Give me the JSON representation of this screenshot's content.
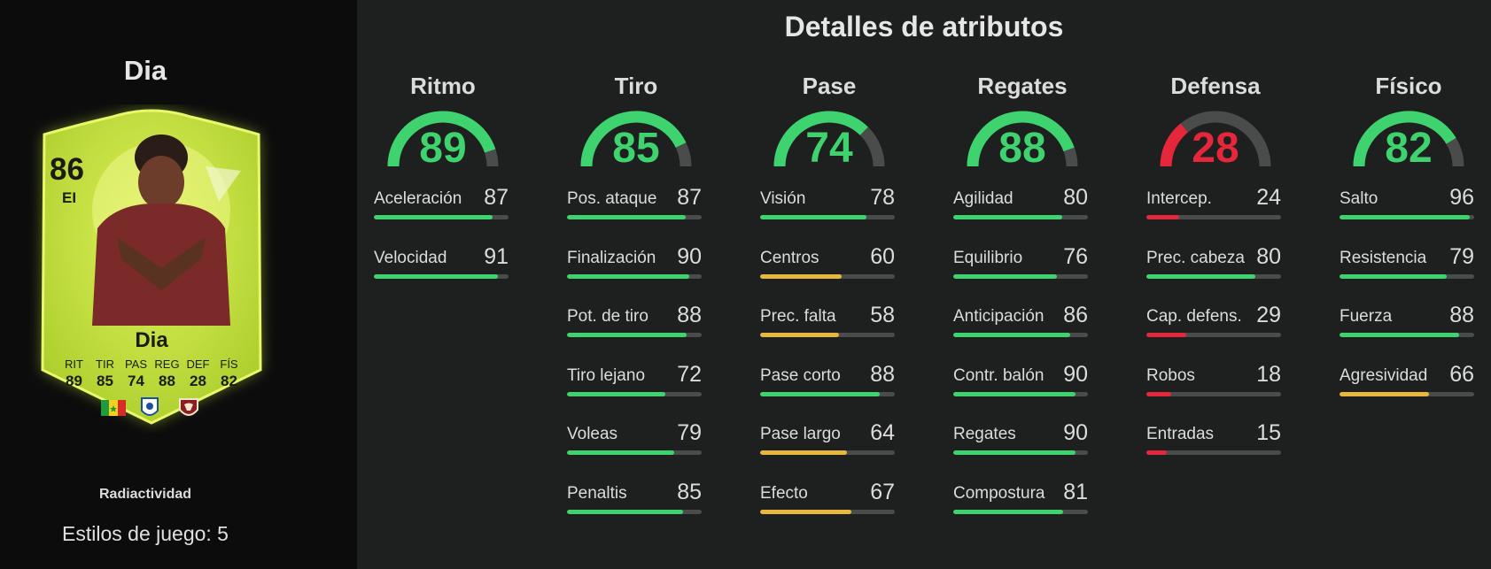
{
  "player": {
    "name": "Dia",
    "rating": "86",
    "position": "EI",
    "card_name": "Dia",
    "card_version": "Radiactividad",
    "playstyles": "Estilos de juego: 5",
    "card_stat_labels": [
      "RIT",
      "TIR",
      "PAS",
      "REG",
      "DEF",
      "FÍS"
    ],
    "card_stat_values": [
      "89",
      "85",
      "74",
      "88",
      "28",
      "82"
    ]
  },
  "section_title": "Detalles de atributos",
  "colors": {
    "high": "#3ed36e",
    "mid": "#e8b83c",
    "low": "#e5263b",
    "track": "#4a4b4b",
    "card": "#c8e83a"
  },
  "categories": [
    {
      "name": "Ritmo",
      "value": 89,
      "attributes": [
        {
          "name": "Aceleración",
          "value": 87
        },
        {
          "name": "Velocidad",
          "value": 91
        }
      ]
    },
    {
      "name": "Tiro",
      "value": 85,
      "attributes": [
        {
          "name": "Pos. ataque",
          "value": 87
        },
        {
          "name": "Finalización",
          "value": 90
        },
        {
          "name": "Pot. de tiro",
          "value": 88
        },
        {
          "name": "Tiro lejano",
          "value": 72
        },
        {
          "name": "Voleas",
          "value": 79
        },
        {
          "name": "Penaltis",
          "value": 85
        }
      ]
    },
    {
      "name": "Pase",
      "value": 74,
      "attributes": [
        {
          "name": "Visión",
          "value": 78
        },
        {
          "name": "Centros",
          "value": 60
        },
        {
          "name": "Prec. falta",
          "value": 58
        },
        {
          "name": "Pase corto",
          "value": 88
        },
        {
          "name": "Pase largo",
          "value": 64
        },
        {
          "name": "Efecto",
          "value": 67
        }
      ]
    },
    {
      "name": "Regates",
      "value": 88,
      "attributes": [
        {
          "name": "Agilidad",
          "value": 80
        },
        {
          "name": "Equilibrio",
          "value": 76
        },
        {
          "name": "Anticipación",
          "value": 86
        },
        {
          "name": "Contr. balón",
          "value": 90
        },
        {
          "name": "Regates",
          "value": 90
        },
        {
          "name": "Compostura",
          "value": 81
        }
      ]
    },
    {
      "name": "Defensa",
      "value": 28,
      "attributes": [
        {
          "name": "Intercep.",
          "value": 24
        },
        {
          "name": "Prec. cabeza",
          "value": 80
        },
        {
          "name": "Cap. defens.",
          "value": 29
        },
        {
          "name": "Robos",
          "value": 18
        },
        {
          "name": "Entradas",
          "value": 15
        }
      ]
    },
    {
      "name": "Físico",
      "value": 82,
      "attributes": [
        {
          "name": "Salto",
          "value": 96
        },
        {
          "name": "Resistencia",
          "value": 79
        },
        {
          "name": "Fuerza",
          "value": 88
        },
        {
          "name": "Agresividad",
          "value": 66
        }
      ]
    }
  ]
}
